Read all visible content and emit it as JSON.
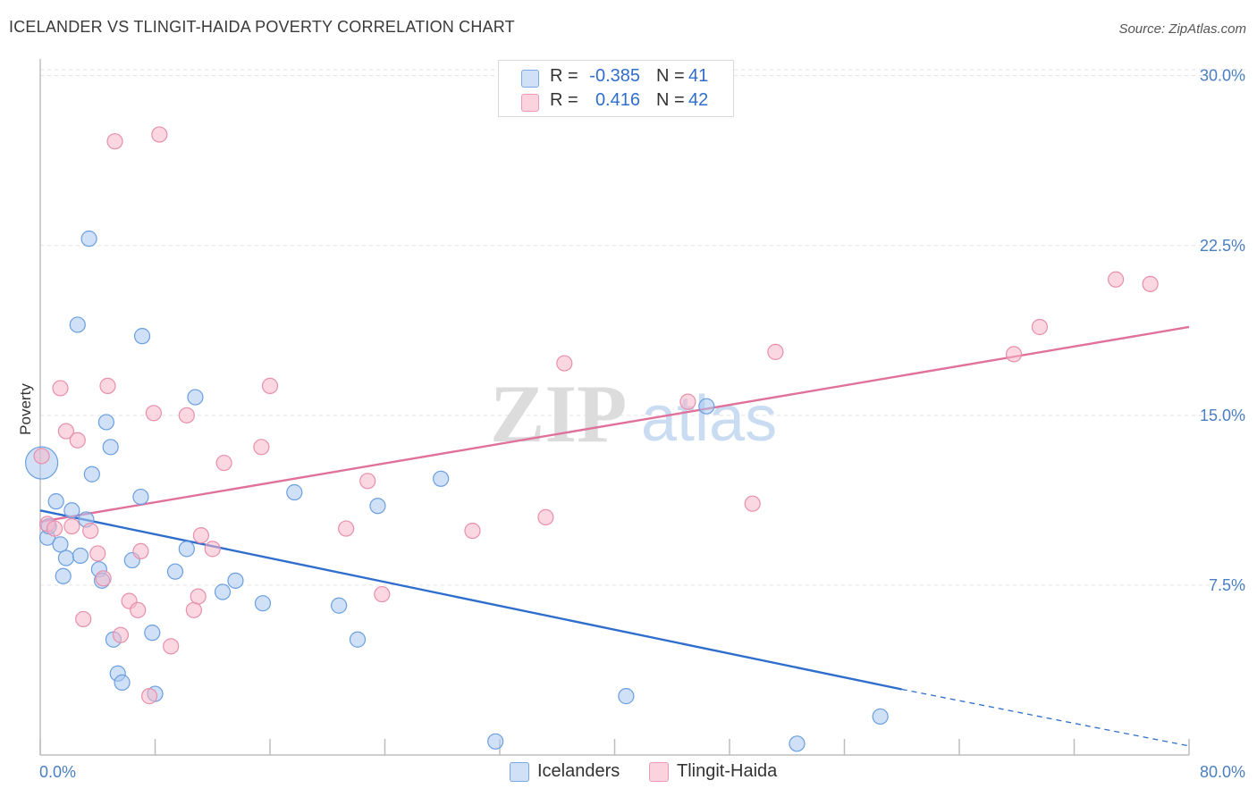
{
  "header": {
    "title": "ICELANDER VS TLINGIT-HAIDA POVERTY CORRELATION CHART",
    "source": "Source: ZipAtlas.com"
  },
  "watermark": {
    "zip": "ZIP",
    "atlas": "atlas"
  },
  "legend": {
    "rows": [
      {
        "r_label": "R =",
        "r_value": "-0.385",
        "n_label": "N =",
        "n_value": "41",
        "color": "#a9c8f0"
      },
      {
        "r_label": "R =",
        "r_value": "0.416",
        "n_label": "N =",
        "n_value": "42",
        "color": "#f5b6c9"
      }
    ]
  },
  "bottom_legend": [
    {
      "label": "Icelanders",
      "color": "#a9c8f0"
    },
    {
      "label": "Tlingit-Haida",
      "color": "#f5b6c9"
    }
  ],
  "chart_data": {
    "type": "scatter",
    "title": "ICELANDER VS TLINGIT-HAIDA POVERTY CORRELATION CHART",
    "xlabel": "",
    "ylabel": "Poverty",
    "xlim": [
      0,
      80
    ],
    "ylim": [
      0,
      30.5
    ],
    "x_tick_labels": [
      "0.0%",
      "80.0%"
    ],
    "y_ticks": [
      7.5,
      15.0,
      22.5,
      30.0
    ],
    "y_tick_labels": [
      "7.5%",
      "15.0%",
      "22.5%",
      "30.0%"
    ],
    "grid": "horizontal dashed",
    "legend_position": "top-center",
    "series": [
      {
        "name": "Icelanders",
        "color": "#a9c8f0",
        "stroke": "#6a9fe0",
        "trend": {
          "x": [
            0,
            60
          ],
          "y": [
            10.8,
            2.9
          ],
          "color": "#2f6ecc",
          "dashed_to": [
            80,
            0.4
          ]
        },
        "points": [
          [
            0.1,
            12.9
          ],
          [
            0.5,
            9.6
          ],
          [
            0.6,
            10.1
          ],
          [
            1.1,
            11.2
          ],
          [
            1.4,
            9.3
          ],
          [
            1.6,
            7.9
          ],
          [
            1.8,
            8.7
          ],
          [
            2.2,
            10.8
          ],
          [
            2.6,
            19.0
          ],
          [
            2.8,
            8.8
          ],
          [
            3.2,
            10.4
          ],
          [
            3.4,
            22.8
          ],
          [
            3.6,
            12.4
          ],
          [
            4.1,
            8.2
          ],
          [
            4.3,
            7.7
          ],
          [
            4.6,
            14.7
          ],
          [
            4.9,
            13.6
          ],
          [
            5.1,
            5.1
          ],
          [
            5.4,
            3.6
          ],
          [
            5.7,
            3.2
          ],
          [
            6.4,
            8.6
          ],
          [
            7.0,
            11.4
          ],
          [
            7.1,
            18.5
          ],
          [
            7.8,
            5.4
          ],
          [
            8.0,
            2.7
          ],
          [
            9.4,
            8.1
          ],
          [
            10.2,
            9.1
          ],
          [
            10.8,
            15.8
          ],
          [
            12.7,
            7.2
          ],
          [
            13.6,
            7.7
          ],
          [
            15.5,
            6.7
          ],
          [
            17.7,
            11.6
          ],
          [
            20.8,
            6.6
          ],
          [
            22.1,
            5.1
          ],
          [
            23.5,
            11.0
          ],
          [
            27.9,
            12.2
          ],
          [
            31.7,
            0.6
          ],
          [
            40.8,
            2.6
          ],
          [
            46.4,
            15.4
          ],
          [
            52.7,
            0.5
          ],
          [
            58.5,
            1.7
          ]
        ]
      },
      {
        "name": "Tlingit-Haida",
        "color": "#f5b6c9",
        "stroke": "#e88fac",
        "trend": {
          "x": [
            0,
            80
          ],
          "y": [
            10.3,
            18.9
          ],
          "color": "#e0719a"
        },
        "points": [
          [
            0.1,
            13.2
          ],
          [
            0.5,
            10.2
          ],
          [
            1.0,
            10.0
          ],
          [
            1.4,
            16.2
          ],
          [
            1.8,
            14.3
          ],
          [
            2.2,
            10.1
          ],
          [
            2.6,
            13.9
          ],
          [
            3.0,
            6.0
          ],
          [
            3.5,
            9.9
          ],
          [
            4.0,
            8.9
          ],
          [
            4.4,
            7.8
          ],
          [
            4.7,
            16.3
          ],
          [
            5.2,
            27.1
          ],
          [
            5.6,
            5.3
          ],
          [
            6.2,
            6.8
          ],
          [
            6.8,
            6.4
          ],
          [
            7.0,
            9.0
          ],
          [
            7.6,
            2.6
          ],
          [
            7.9,
            15.1
          ],
          [
            8.3,
            27.4
          ],
          [
            9.1,
            4.8
          ],
          [
            10.2,
            15.0
          ],
          [
            10.7,
            6.4
          ],
          [
            11.0,
            7.0
          ],
          [
            11.2,
            9.7
          ],
          [
            12.0,
            9.1
          ],
          [
            12.8,
            12.9
          ],
          [
            15.4,
            13.6
          ],
          [
            16.0,
            16.3
          ],
          [
            21.3,
            10.0
          ],
          [
            22.8,
            12.1
          ],
          [
            23.8,
            7.1
          ],
          [
            30.1,
            9.9
          ],
          [
            35.2,
            10.5
          ],
          [
            36.5,
            17.3
          ],
          [
            45.1,
            15.6
          ],
          [
            49.6,
            11.1
          ],
          [
            51.2,
            17.8
          ],
          [
            67.8,
            17.7
          ],
          [
            69.6,
            18.9
          ],
          [
            74.9,
            21.0
          ],
          [
            77.3,
            20.8
          ]
        ]
      }
    ]
  }
}
